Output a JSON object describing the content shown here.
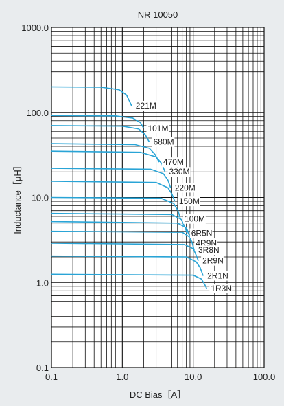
{
  "chart_data": {
    "type": "line",
    "title": "NR 10050",
    "xlabel": "DC Bias［A］",
    "ylabel": "Inductance［μH］",
    "x_scale": "log",
    "y_scale": "log",
    "xlim": [
      0.1,
      100.0
    ],
    "ylim": [
      0.1,
      1000.0
    ],
    "x_ticks": [
      "0.1",
      "1.0",
      "10.0",
      "100.0"
    ],
    "y_ticks": [
      "0.1",
      "1.0",
      "10.0",
      "100.0",
      "1000.0"
    ],
    "grid": true,
    "line_color": "#29a4d6",
    "series": [
      {
        "name": "221M",
        "points": [
          [
            0.1,
            200
          ],
          [
            0.5,
            198
          ],
          [
            0.9,
            185
          ],
          [
            1.15,
            160
          ],
          [
            1.35,
            120
          ]
        ]
      },
      {
        "name": "101M",
        "points": [
          [
            0.1,
            92
          ],
          [
            0.8,
            91
          ],
          [
            1.4,
            86
          ],
          [
            1.8,
            76
          ],
          [
            2.0,
            65
          ]
        ]
      },
      {
        "name": "680M",
        "points": [
          [
            0.1,
            70
          ],
          [
            1.0,
            69
          ],
          [
            1.7,
            64
          ],
          [
            2.1,
            55
          ],
          [
            2.4,
            45
          ]
        ]
      },
      {
        "name": "470M",
        "points": [
          [
            0.1,
            43
          ],
          [
            1.5,
            42
          ],
          [
            2.4,
            38
          ],
          [
            2.9,
            32
          ],
          [
            3.3,
            26
          ]
        ]
      },
      {
        "name": "330M",
        "points": [
          [
            0.1,
            35
          ],
          [
            1.8,
            34
          ],
          [
            3.0,
            30
          ],
          [
            3.6,
            25
          ],
          [
            4.0,
            20
          ]
        ]
      },
      {
        "name": "220M",
        "points": [
          [
            0.1,
            22
          ],
          [
            2.5,
            21.5
          ],
          [
            3.8,
            19
          ],
          [
            4.4,
            16
          ],
          [
            4.8,
            13
          ]
        ]
      },
      {
        "name": "150M",
        "points": [
          [
            0.1,
            15.5
          ],
          [
            3.0,
            15
          ],
          [
            4.4,
            13
          ],
          [
            5.0,
            11
          ],
          [
            5.5,
            9
          ]
        ]
      },
      {
        "name": "100M",
        "points": [
          [
            0.1,
            10
          ],
          [
            3.5,
            9.8
          ],
          [
            5.3,
            8.5
          ],
          [
            6.1,
            7
          ],
          [
            6.6,
            5.6
          ]
        ]
      },
      {
        "name": "6R5N",
        "points": [
          [
            0.1,
            6.5
          ],
          [
            5.0,
            6.3
          ],
          [
            6.8,
            5.5
          ],
          [
            7.6,
            4.5
          ],
          [
            8.2,
            3.8
          ]
        ]
      },
      {
        "name": "4R9N",
        "points": [
          [
            0.1,
            5.2
          ],
          [
            6.0,
            5.0
          ],
          [
            8.0,
            4.4
          ],
          [
            8.8,
            3.6
          ],
          [
            9.5,
            2.9
          ]
        ]
      },
      {
        "name": "3R8N",
        "points": [
          [
            0.1,
            4.0
          ],
          [
            7.0,
            3.9
          ],
          [
            9.0,
            3.4
          ],
          [
            9.7,
            2.9
          ],
          [
            10.3,
            2.4
          ]
        ]
      },
      {
        "name": "2R9N",
        "points": [
          [
            0.1,
            2.9
          ],
          [
            7.5,
            2.8
          ],
          [
            10.0,
            2.5
          ],
          [
            11.0,
            2.1
          ],
          [
            11.8,
            1.8
          ]
        ]
      },
      {
        "name": "2R1N",
        "points": [
          [
            0.1,
            2.05
          ],
          [
            8.0,
            2.0
          ],
          [
            11.0,
            1.75
          ],
          [
            12.5,
            1.5
          ],
          [
            13.8,
            1.2
          ]
        ]
      },
      {
        "name": "1R3N",
        "points": [
          [
            0.1,
            1.25
          ],
          [
            10.0,
            1.22
          ],
          [
            13.0,
            1.1
          ],
          [
            14.5,
            0.95
          ],
          [
            15.5,
            0.85
          ]
        ]
      }
    ]
  }
}
